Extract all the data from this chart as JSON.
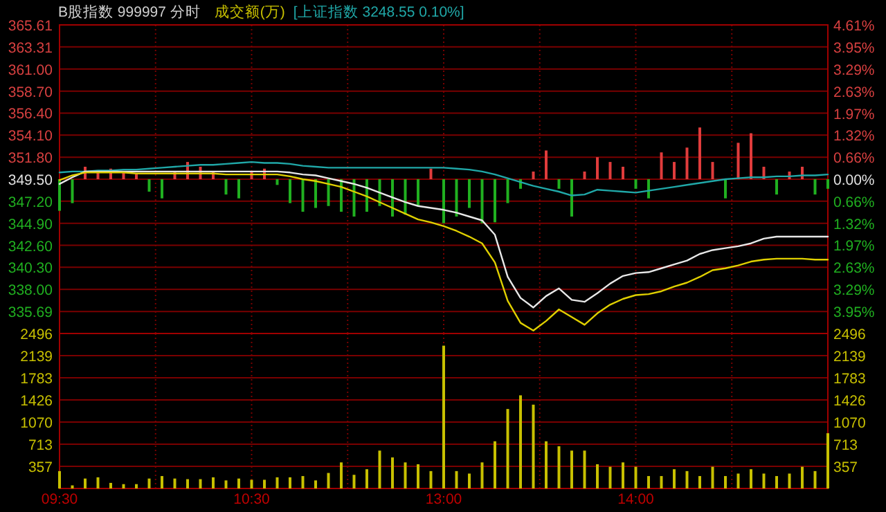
{
  "chart_data": [
    {
      "type": "line",
      "title": "B股指数 999997 分时",
      "grid": true,
      "tick_labels": "y",
      "categories": [
        null,
        null,
        null,
        null,
        null,
        null,
        null,
        null,
        null,
        null,
        null,
        null,
        null,
        null,
        null,
        null,
        null,
        null,
        null,
        null,
        null,
        null,
        null,
        null,
        null,
        null,
        null,
        null,
        null,
        null,
        null,
        null,
        null,
        null,
        null,
        null,
        null,
        null,
        null,
        null,
        null,
        null,
        null,
        null,
        null,
        null,
        null,
        null,
        null,
        null,
        null,
        null,
        null,
        null,
        null,
        null,
        null,
        null,
        null,
        null,
        null
      ],
      "ylim": [
        333.39,
        365.61
      ],
      "yticks": [
        365.61,
        363.31,
        {
          "value": 361,
          "label": "361.00"
        },
        {
          "value": 358.7,
          "label": "358.70"
        },
        {
          "value": 356.4,
          "label": "356.40"
        },
        {
          "value": 354.1,
          "label": "354.10"
        },
        {
          "value": 351.8,
          "label": "351.80"
        },
        {
          "value": 349.5,
          "label": "349.50"
        },
        {
          "value": 347.2,
          "label": "347.20"
        },
        {
          "value": 344.9,
          "label": "344.90"
        },
        {
          "value": 342.6,
          "label": "342.60"
        },
        {
          "value": 340.3,
          "label": "340.30"
        },
        {
          "value": 338,
          "label": "338.00"
        },
        335.69
      ],
      "y2lim": [
        -4.61,
        4.61
      ],
      "y2ticks": [
        {
          "value": 4.61,
          "label": "4.61%"
        },
        {
          "value": 3.95,
          "label": "3.95%"
        },
        {
          "value": 3.29,
          "label": "3.29%"
        },
        {
          "value": 2.63,
          "label": "2.63%"
        },
        {
          "value": 1.97,
          "label": "1.97%"
        },
        {
          "value": 1.32,
          "label": "1.32%"
        },
        {
          "value": 0.66,
          "label": "0.66%"
        },
        {
          "value": 0,
          "label": "0.00%"
        },
        {
          "value": -0.66,
          "label": "0.66%"
        },
        {
          "value": -1.32,
          "label": "1.32%"
        },
        {
          "value": -1.97,
          "label": "1.97%"
        },
        {
          "value": -2.63,
          "label": "2.63%"
        },
        {
          "value": -3.29,
          "label": "3.29%"
        },
        {
          "value": -3.95,
          "label": "3.95%"
        }
      ],
      "series": [
        {
          "type": "bar",
          "base": [
            349.5,
            349.5,
            349.5,
            349.5,
            349.5,
            349.5,
            349.5,
            349.5,
            349.5,
            349.5,
            349.5,
            349.5,
            349.5,
            349.5,
            349.5,
            349.5,
            349.5,
            349.5,
            349.5,
            349.5,
            349.5,
            349.5,
            349.5,
            349.5,
            349.5,
            349.5,
            349.5,
            349.5,
            349.5,
            349.5,
            349.5,
            349.5,
            349.5,
            349.5,
            349.5,
            349.5,
            349.5,
            349.5,
            349.5,
            349.5,
            349.5,
            349.5,
            349.5,
            349.5,
            349.5,
            349.5,
            349.5,
            349.5,
            349.5,
            349.5,
            349.5,
            349.5,
            349.5,
            349.5,
            349.5,
            349.5,
            349.5,
            349.5,
            349.5,
            349.5,
            349.5
          ],
          "values": [
            -3.3,
            -2.5,
            1.3,
            0.8,
            1.1,
            0.8,
            0.5,
            -1.3,
            -2.0,
            0.8,
            1.8,
            1.3,
            0.8,
            -1.6,
            -2.0,
            0.8,
            1.1,
            -0.6,
            -2.5,
            -3.4,
            -3.0,
            -2.8,
            -3.4,
            -3.9,
            -3.4,
            -2.8,
            -3.9,
            -3.7,
            -2.8,
            1.1,
            -4.6,
            -3.9,
            -3.0,
            -4.6,
            -4.5,
            -2.5,
            -1.0,
            0.8,
            3.0,
            -1.0,
            -3.9,
            0.8,
            2.3,
            1.8,
            1.3,
            -1.0,
            -2.0,
            2.8,
            1.8,
            3.3,
            5.4,
            1.8,
            -2.0,
            3.8,
            4.8,
            1.3,
            -1.6,
            0.8,
            1.3,
            -1.6,
            -1.0
          ],
          "colors": [
            "#20b020",
            "#20b020",
            "#e03c3c",
            "#e03c3c",
            "#e03c3c",
            "#e03c3c",
            "#e03c3c",
            "#20b020",
            "#20b020",
            "#e03c3c",
            "#e03c3c",
            "#e03c3c",
            "#e03c3c",
            "#20b020",
            "#20b020",
            "#e03c3c",
            "#e03c3c",
            "#20b020",
            "#20b020",
            "#20b020",
            "#20b020",
            "#20b020",
            "#20b020",
            "#20b020",
            "#20b020",
            "#20b020",
            "#20b020",
            "#20b020",
            "#20b020",
            "#e03c3c",
            "#20b020",
            "#20b020",
            "#20b020",
            "#20b020",
            "#20b020",
            "#20b020",
            "#20b020",
            "#e03c3c",
            "#e03c3c",
            "#20b020",
            "#20b020",
            "#e03c3c",
            "#e03c3c",
            "#e03c3c",
            "#e03c3c",
            "#20b020",
            "#20b020",
            "#e03c3c",
            "#e03c3c",
            "#e03c3c",
            "#e03c3c",
            "#e03c3c",
            "#20b020",
            "#e03c3c",
            "#e03c3c",
            "#e03c3c",
            "#20b020",
            "#e03c3c",
            "#e03c3c",
            "#20b020",
            "#20b020"
          ]
        },
        {
          "type": "line",
          "name": "[上证指数 3248.55 0.10%]",
          "color": "#20a8a8",
          "values": [
            350.2,
            350.3,
            350.3,
            350.4,
            350.4,
            350.5,
            350.5,
            350.6,
            350.7,
            350.8,
            350.9,
            351.0,
            351.0,
            351.1,
            351.2,
            351.3,
            351.2,
            351.2,
            351.1,
            350.9,
            350.8,
            350.7,
            350.7,
            350.7,
            350.7,
            350.7,
            350.7,
            350.7,
            350.7,
            350.7,
            350.7,
            350.6,
            350.5,
            350.3,
            350.0,
            349.6,
            349.2,
            348.8,
            348.5,
            348.2,
            347.8,
            347.9,
            348.4,
            348.3,
            348.2,
            348.1,
            348.3,
            348.5,
            348.7,
            348.9,
            349.1,
            349.3,
            349.5,
            349.6,
            349.7,
            349.7,
            349.8,
            349.8,
            349.9,
            349.9,
            350.0
          ]
        },
        {
          "type": "line",
          "color": "#e8e8e8",
          "values": [
            349.0,
            349.7,
            350.3,
            350.3,
            350.3,
            350.3,
            350.3,
            350.3,
            350.3,
            350.3,
            350.3,
            350.3,
            350.3,
            350.3,
            350.3,
            350.3,
            350.3,
            350.3,
            350.2,
            350.0,
            349.9,
            349.6,
            349.3,
            349.0,
            348.6,
            348.1,
            347.6,
            347.1,
            346.7,
            346.5,
            346.3,
            346.0,
            345.6,
            345.2,
            343.7,
            339.3,
            337.1,
            336.1,
            337.3,
            338.1,
            336.9,
            336.7,
            337.6,
            338.6,
            339.4,
            339.7,
            339.8,
            340.2,
            340.6,
            341.0,
            341.7,
            342.1,
            342.3,
            342.5,
            342.8,
            343.3,
            343.5,
            343.5,
            343.5,
            343.5,
            343.5
          ]
        },
        {
          "type": "line",
          "color": "#e0d000",
          "values": [
            349.4,
            349.9,
            350.2,
            350.2,
            350.2,
            350.2,
            350.1,
            350.1,
            350.1,
            350.1,
            350.1,
            350.1,
            350.1,
            350.0,
            350.0,
            350.0,
            350.0,
            350.0,
            349.8,
            349.5,
            349.3,
            349.0,
            348.7,
            348.2,
            347.7,
            347.1,
            346.5,
            345.9,
            345.3,
            345.0,
            344.6,
            344.1,
            343.5,
            342.8,
            340.8,
            336.8,
            334.5,
            333.7,
            334.7,
            335.9,
            335.1,
            334.3,
            335.5,
            336.4,
            337.0,
            337.4,
            337.5,
            337.8,
            338.3,
            338.7,
            339.3,
            340.0,
            340.2,
            340.5,
            340.9,
            341.1,
            341.2,
            341.2,
            341.2,
            341.1,
            341.1
          ]
        }
      ]
    },
    {
      "type": "bar",
      "grid": true,
      "categories": [
        "09:30",
        null,
        null,
        null,
        null,
        null,
        null,
        null,
        null,
        null,
        null,
        null,
        null,
        null,
        null,
        "10:30",
        null,
        null,
        null,
        null,
        null,
        null,
        null,
        null,
        null,
        null,
        null,
        null,
        null,
        null,
        "13:00",
        null,
        null,
        null,
        null,
        null,
        null,
        null,
        null,
        null,
        null,
        null,
        null,
        null,
        null,
        "14:00",
        null,
        null,
        null,
        null,
        null,
        null,
        null,
        null,
        null,
        null,
        null,
        null,
        null,
        null,
        null
      ],
      "ylim": [
        0,
        2496
      ],
      "yticks": [
        357,
        713,
        1070,
        1426,
        1783,
        2139,
        2496
      ],
      "y2lim": [
        0,
        2496
      ],
      "y2ticks": [
        357,
        713,
        1070,
        1426,
        1783,
        2139,
        2496
      ],
      "series": [
        {
          "name": "成交额(万)",
          "color": "#c8c000",
          "values": [
            280,
            50,
            160,
            180,
            90,
            70,
            70,
            160,
            200,
            160,
            150,
            150,
            180,
            130,
            160,
            140,
            140,
            180,
            180,
            200,
            130,
            250,
            420,
            220,
            310,
            610,
            500,
            420,
            390,
            280,
            2300,
            280,
            240,
            420,
            760,
            1280,
            1500,
            1350,
            760,
            680,
            610,
            610,
            390,
            350,
            420,
            350,
            200,
            200,
            310,
            280,
            200,
            350,
            200,
            240,
            310,
            240,
            200,
            240,
            350,
            280,
            890
          ]
        }
      ]
    }
  ]
}
